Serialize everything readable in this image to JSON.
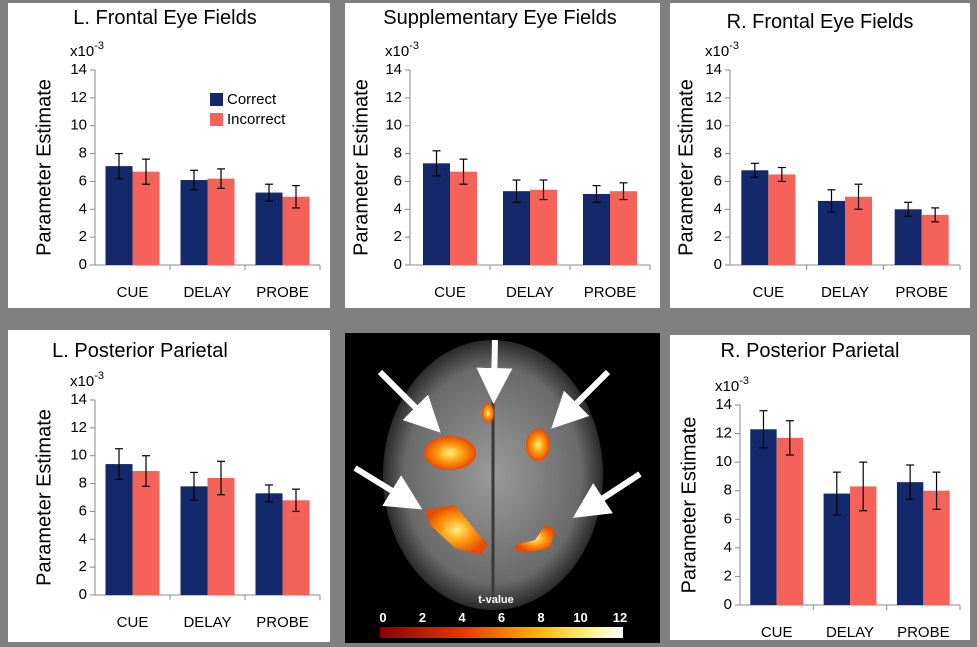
{
  "chart_data": [
    {
      "type": "bar",
      "title": "L. Frontal Eye Fields",
      "y_label": "Parameter Estimate",
      "multiplier": {
        "base": "x10",
        "exponent": "-3"
      },
      "categories": [
        "CUE",
        "DELAY",
        "PROBE"
      ],
      "ylim": [
        0,
        14
      ],
      "yticks": [
        0,
        2,
        4,
        6,
        8,
        10,
        12,
        14
      ],
      "legend": "upper right",
      "series": [
        {
          "name": "Correct",
          "color": "#13296b",
          "values": [
            7.1,
            6.1,
            5.2
          ],
          "errors": [
            0.9,
            0.7,
            0.6
          ]
        },
        {
          "name": "Incorrect",
          "color": "#f4625a",
          "values": [
            6.7,
            6.2,
            4.9
          ],
          "errors": [
            0.9,
            0.7,
            0.8
          ]
        }
      ]
    },
    {
      "type": "bar",
      "title": "Supplementary Eye Fields",
      "y_label": "Parameter Estimate",
      "multiplier": {
        "base": "x10",
        "exponent": "-3"
      },
      "categories": [
        "CUE",
        "DELAY",
        "PROBE"
      ],
      "ylim": [
        0,
        14
      ],
      "yticks": [
        0,
        2,
        4,
        6,
        8,
        10,
        12,
        14
      ],
      "series": [
        {
          "color": "#13296b",
          "values": [
            7.3,
            5.3,
            5.1
          ],
          "errors": [
            0.9,
            0.8,
            0.6
          ]
        },
        {
          "color": "#f4625a",
          "values": [
            6.7,
            5.4,
            5.3
          ],
          "errors": [
            0.9,
            0.7,
            0.6
          ]
        }
      ]
    },
    {
      "type": "bar",
      "title": "R. Frontal Eye Fields",
      "y_label": "Parameter Estimate",
      "multiplier": {
        "base": "x10",
        "exponent": "-3"
      },
      "categories": [
        "CUE",
        "DELAY",
        "PROBE"
      ],
      "ylim": [
        0,
        14
      ],
      "yticks": [
        0,
        2,
        4,
        6,
        8,
        10,
        12,
        14
      ],
      "series": [
        {
          "color": "#13296b",
          "values": [
            6.8,
            4.6,
            4.0
          ],
          "errors": [
            0.5,
            0.8,
            0.5
          ]
        },
        {
          "color": "#f4625a",
          "values": [
            6.5,
            4.9,
            3.6
          ],
          "errors": [
            0.5,
            0.9,
            0.5
          ]
        }
      ]
    },
    {
      "type": "bar",
      "title": "L. Posterior Parietal",
      "y_label": "Parameter Estimate",
      "multiplier": {
        "base": "x10",
        "exponent": "-3"
      },
      "categories": [
        "CUE",
        "DELAY",
        "PROBE"
      ],
      "ylim": [
        0,
        14
      ],
      "yticks": [
        0,
        2,
        4,
        6,
        8,
        10,
        12,
        14
      ],
      "series": [
        {
          "color": "#13296b",
          "values": [
            9.4,
            7.8,
            7.3
          ],
          "errors": [
            1.1,
            1.0,
            0.6
          ]
        },
        {
          "color": "#f4625a",
          "values": [
            8.9,
            8.4,
            6.8
          ],
          "errors": [
            1.1,
            1.2,
            0.8
          ]
        }
      ]
    },
    {
      "type": "bar",
      "title": "R. Posterior Parietal",
      "y_label": "Parameter Estimate",
      "multiplier": {
        "base": "x10",
        "exponent": "-3"
      },
      "categories": [
        "CUE",
        "DELAY",
        "PROBE"
      ],
      "ylim": [
        0,
        14
      ],
      "yticks": [
        0,
        2,
        4,
        6,
        8,
        10,
        12,
        14
      ],
      "series": [
        {
          "color": "#13296b",
          "values": [
            12.3,
            7.8,
            8.6
          ],
          "errors": [
            1.3,
            1.5,
            1.2
          ]
        },
        {
          "color": "#f4625a",
          "values": [
            11.7,
            8.3,
            8.0
          ],
          "errors": [
            1.2,
            1.7,
            1.3
          ]
        }
      ]
    }
  ],
  "colorbar": {
    "label": "t-value",
    "ticks": [
      0,
      2,
      4,
      6,
      8,
      10,
      12
    ]
  }
}
